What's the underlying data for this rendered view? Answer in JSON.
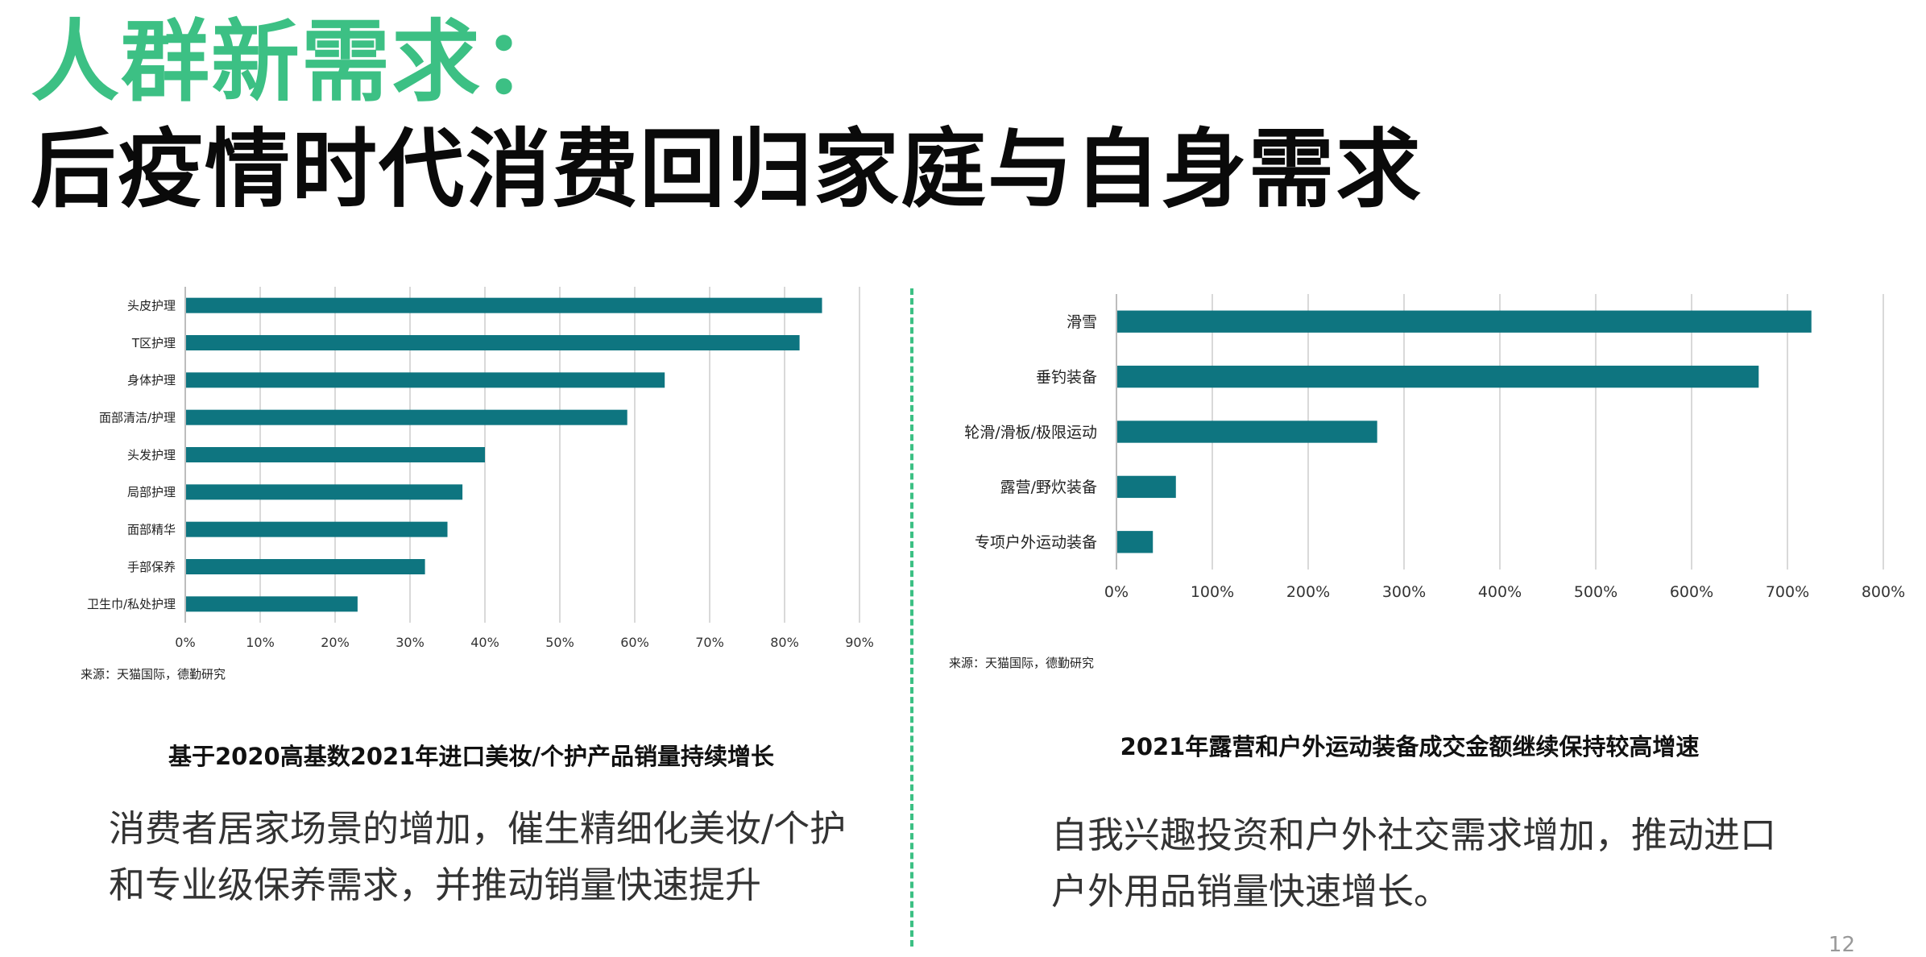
{
  "header": {
    "title_line1": "人群新需求：",
    "title_line2": "后疫情时代消费回归家庭与自身需求"
  },
  "colors": {
    "accent": "#3cc084",
    "bar": "#0e7580",
    "grid": "#d9d9d9"
  },
  "left_panel": {
    "source": "来源：天猫国际，德勤研究",
    "caption": "基于2020高基数2021年进口美妆/个护产品销量持续增长",
    "description": [
      "消费者居家场景的增加，催生精细化美妆/个护",
      "和专业级保养需求，并推动销量快速提升"
    ]
  },
  "right_panel": {
    "source": "来源：天猫国际，德勤研究",
    "caption": "2021年露营和户外运动装备成交金额继续保持较高增速",
    "description": [
      "自我兴趣投资和户外社交需求增加，推动进口",
      "户外用品销量快速增长。"
    ]
  },
  "page_number": "12",
  "chart_data": [
    {
      "type": "bar",
      "orientation": "horizontal",
      "categories": [
        "头皮护理",
        "T区护理",
        "身体护理",
        "面部清洁/护理",
        "头发护理",
        "局部护理",
        "面部精华",
        "手部保养",
        "卫生巾/私处护理"
      ],
      "values": [
        85,
        82,
        64,
        59,
        40,
        37,
        35,
        32,
        23
      ],
      "xlim": [
        0,
        90
      ],
      "ticks": [
        0,
        10,
        20,
        30,
        40,
        50,
        60,
        70,
        80,
        90
      ],
      "tick_labels": [
        "0%",
        "10%",
        "20%",
        "30%",
        "40%",
        "50%",
        "60%",
        "70%",
        "80%",
        "90%"
      ],
      "grid": true
    },
    {
      "type": "bar",
      "orientation": "horizontal",
      "categories": [
        "滑雪",
        "垂钓装备",
        "轮滑/滑板/极限运动",
        "露营/野炊装备",
        "专项户外运动装备"
      ],
      "values": [
        725,
        670,
        272,
        62,
        38
      ],
      "xlim": [
        0,
        800
      ],
      "ticks": [
        0,
        100,
        200,
        300,
        400,
        500,
        600,
        700,
        800
      ],
      "tick_labels": [
        "0%",
        "100%",
        "200%",
        "300%",
        "400%",
        "500%",
        "600%",
        "700%",
        "800%"
      ],
      "grid": true
    }
  ]
}
